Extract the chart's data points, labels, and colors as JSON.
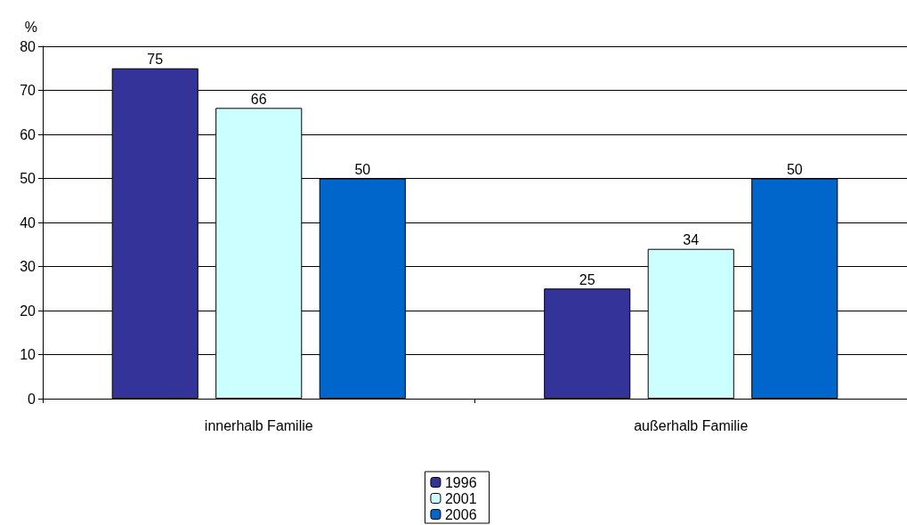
{
  "chart_data": {
    "type": "bar",
    "ylabel": "%",
    "categories": [
      "innerhalb Familie",
      "außerhalb Familie"
    ],
    "series": [
      {
        "name": "1996",
        "color": "#333399",
        "values": [
          75,
          25
        ]
      },
      {
        "name": "2001",
        "color": "#ccffff",
        "values": [
          66,
          34
        ]
      },
      {
        "name": "2006",
        "color": "#0066cc",
        "values": [
          50,
          50
        ]
      }
    ],
    "ylim": [
      0,
      80
    ],
    "yticks": [
      0,
      10,
      20,
      30,
      40,
      50,
      60,
      70,
      80
    ],
    "grid": "y",
    "legend": "bottom",
    "data_labels": true
  }
}
